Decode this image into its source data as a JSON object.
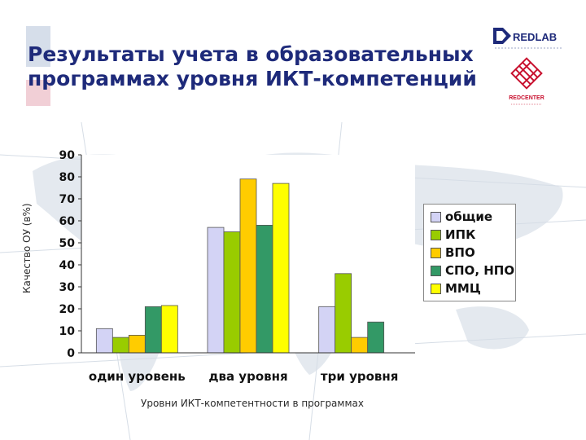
{
  "header": {
    "title_line1": "Результаты учета в образовательных",
    "title_line2": "программах уровня ИКТ-компетенций",
    "logo_top_text": "REDLAB",
    "logo_bottom_text": "REDCENTER"
  },
  "colors": {
    "title": "#1e2a7a",
    "logo_blue": "#1e2a7a",
    "logo_red": "#c8102e"
  },
  "chart_data": {
    "type": "bar",
    "categories": [
      "один уровень",
      "два уровня",
      "три уровня"
    ],
    "series": [
      {
        "name": "общие",
        "color": "#d3d3f5",
        "values": [
          11,
          57,
          21
        ]
      },
      {
        "name": "ИПК",
        "color": "#99cc00",
        "values": [
          7,
          55,
          36
        ]
      },
      {
        "name": "ВПО",
        "color": "#ffcc00",
        "values": [
          8,
          79,
          7
        ]
      },
      {
        "name": "СПО, НПО",
        "color": "#339966",
        "values": [
          21,
          58,
          14
        ]
      },
      {
        "name": "ММЦ",
        "color": "#ffff00",
        "values": [
          21.5,
          77,
          0
        ]
      }
    ],
    "ylim": [
      0,
      90
    ],
    "yticks": [
      "0",
      "10",
      "20",
      "30",
      "40",
      "50",
      "60",
      "70",
      "80",
      "90"
    ],
    "xlabel": "Уровни ИКТ-компетентности в программах",
    "ylabel": "Качество ОУ (в%)",
    "legend_position": "right",
    "grid": false
  }
}
